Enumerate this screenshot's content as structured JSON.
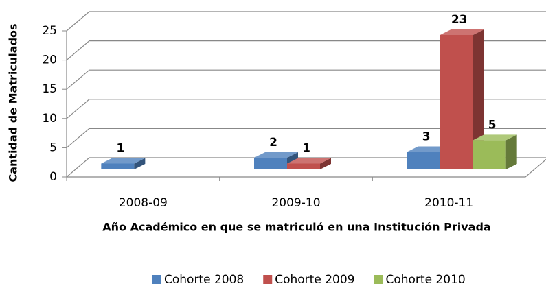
{
  "chart_data": {
    "type": "bar3d",
    "x_label": "Año Académico en que se matriculó en una Institución Privada",
    "y_label": "Cantidad de Matriculados",
    "categories": [
      "2008-09",
      "2009-10",
      "2010-11"
    ],
    "series": [
      {
        "name": "Cohorte 2008",
        "color": "#4f81bd",
        "values": [
          1,
          2,
          3
        ]
      },
      {
        "name": "Cohorte 2009",
        "color": "#c0504d",
        "values": [
          null,
          1,
          23
        ]
      },
      {
        "name": "Cohorte 2010",
        "color": "#9bbb59",
        "values": [
          null,
          null,
          5
        ]
      }
    ],
    "ylim": [
      0,
      25
    ],
    "yticks": [
      0,
      5,
      10,
      15,
      20,
      25
    ],
    "grid": true,
    "legend": "bottom"
  }
}
